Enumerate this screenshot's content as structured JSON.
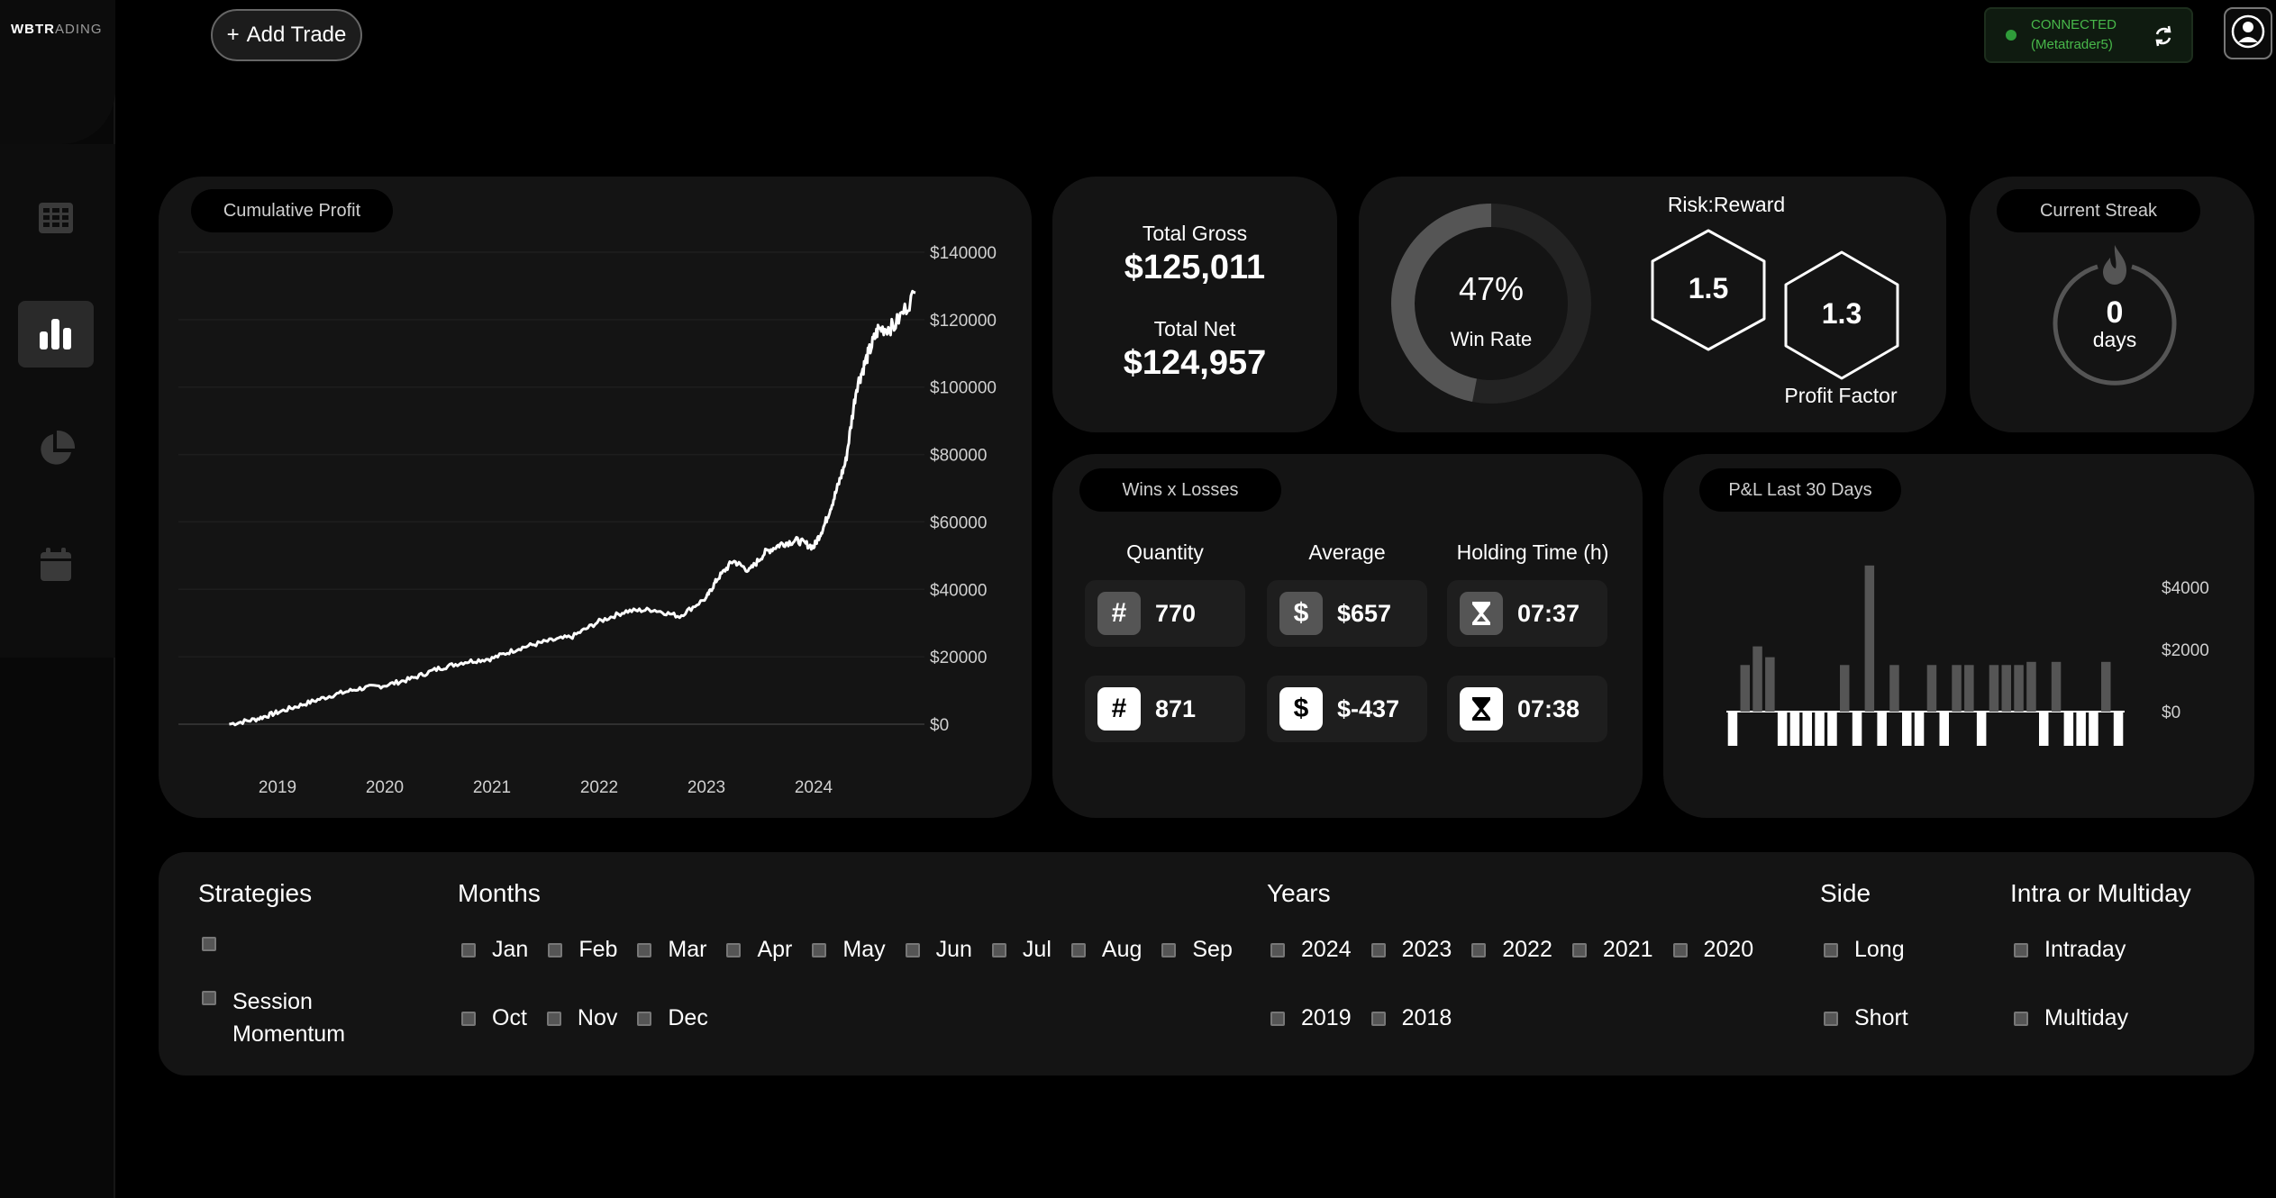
{
  "brand": {
    "bold": "WBTR",
    "light": "ADING"
  },
  "toolbar": {
    "add_trade_icon": "+",
    "add_trade_label": "Add Trade"
  },
  "connection": {
    "status": "CONNECTED",
    "platform": "(Metatrader5)",
    "status_color": "#48b84a"
  },
  "sidebar": {
    "items": [
      {
        "icon": "grid-icon"
      },
      {
        "icon": "bar-chart-icon",
        "active": true
      },
      {
        "icon": "pie-chart-icon"
      },
      {
        "icon": "calendar-icon"
      }
    ]
  },
  "cumulative_profit": {
    "title": "Cumulative Profit",
    "chart_data": {
      "type": "line",
      "y_ticks": [
        "$140000",
        "$120000",
        "$100000",
        "$80000",
        "$60000",
        "$40000",
        "$20000",
        "$0"
      ],
      "x_ticks": [
        "2019",
        "2020",
        "2021",
        "2022",
        "2023",
        "2024"
      ],
      "ylim": [
        0,
        140000
      ],
      "x": [
        2018.55,
        2018.8,
        2019.0,
        2019.25,
        2019.5,
        2019.75,
        2020.0,
        2020.25,
        2020.5,
        2020.75,
        2021.0,
        2021.25,
        2021.5,
        2021.75,
        2022.0,
        2022.25,
        2022.5,
        2022.75,
        2023.0,
        2023.1,
        2023.25,
        2023.4,
        2023.55,
        2023.7,
        2023.85,
        2024.0,
        2024.1,
        2024.2,
        2024.3,
        2024.4,
        2024.5,
        2024.6,
        2024.75,
        2024.95
      ],
      "y": [
        0,
        1500,
        3500,
        6000,
        8500,
        10500,
        11500,
        13500,
        16500,
        18500,
        19500,
        22500,
        24500,
        26000,
        30500,
        33500,
        34000,
        32000,
        37500,
        43000,
        48500,
        45500,
        51000,
        53500,
        54500,
        52500,
        59000,
        68000,
        78000,
        100000,
        109000,
        117000,
        118000,
        128000
      ],
      "line_color": "#ffffff"
    }
  },
  "totals": {
    "gross_label": "Total Gross",
    "gross_value": "$125,011",
    "net_label": "Total Net",
    "net_value": "$124,957"
  },
  "win_rate": {
    "value": "47%",
    "label": "Win Rate",
    "percent": 47
  },
  "risk_reward": {
    "label": "Risk:Reward",
    "value": "1.5"
  },
  "profit_factor": {
    "label": "Profit Factor",
    "value": "1.3"
  },
  "streak": {
    "title": "Current Streak",
    "value": "0",
    "unit": "days",
    "icon": "flame-icon"
  },
  "wins_losses": {
    "title": "Wins x Losses",
    "columns": [
      "Quantity",
      "Average",
      "Holding Time (h)"
    ],
    "rows": [
      {
        "quantity": "770",
        "average": "$657",
        "holding": "07:37",
        "style": "wins"
      },
      {
        "quantity": "871",
        "average": "$-437",
        "holding": "07:38",
        "style": "losses"
      }
    ],
    "icons": {
      "quantity": "#",
      "average": "$",
      "holding": "hourglass-icon"
    }
  },
  "pnl_30": {
    "title": "P&L Last 30 Days",
    "chart_data": {
      "type": "bar",
      "y_ticks": [
        "$4000",
        "$2000",
        "$0"
      ],
      "ylim": [
        -1150,
        4700
      ],
      "values": [
        -1100,
        1500,
        2100,
        1750,
        -1100,
        -1100,
        -1100,
        -1100,
        -1100,
        1500,
        -1100,
        4700,
        -1100,
        1500,
        -1100,
        -1100,
        1500,
        -1100,
        1500,
        1500,
        -1100,
        1500,
        1500,
        1500,
        1600,
        -1100,
        1600,
        -1100,
        -1100,
        -1100,
        1600,
        -1100
      ],
      "positive_color": "#555555",
      "negative_color": "#ffffff"
    }
  },
  "filters": {
    "strategies": {
      "title": "Strategies",
      "items": [
        "",
        "Session Momentum"
      ]
    },
    "months": {
      "title": "Months",
      "items": [
        "Jan",
        "Feb",
        "Mar",
        "Apr",
        "May",
        "Jun",
        "Jul",
        "Aug",
        "Sep",
        "Oct",
        "Nov",
        "Dec"
      ]
    },
    "years": {
      "title": "Years",
      "items": [
        "2024",
        "2023",
        "2022",
        "2021",
        "2020",
        "2019",
        "2018"
      ]
    },
    "side": {
      "title": "Side",
      "items": [
        "Long",
        "Short"
      ]
    },
    "intra": {
      "title": "Intra or Multiday",
      "items": [
        "Intraday",
        "Multiday"
      ]
    }
  }
}
